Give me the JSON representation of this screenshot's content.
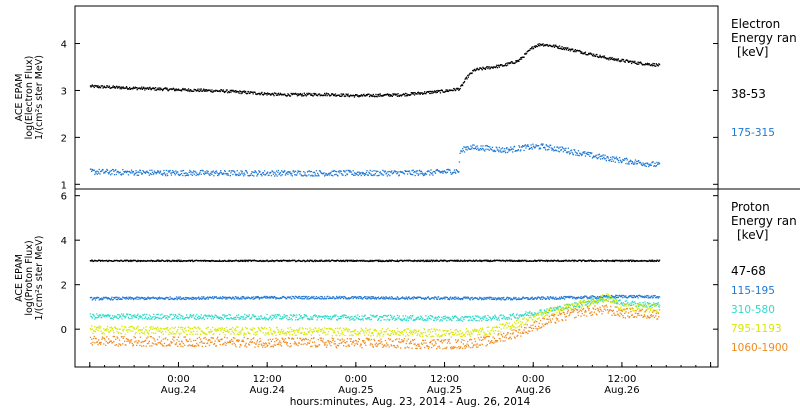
{
  "xlabel": "hours:minutes, Aug. 23, 2014 - Aug. 26, 2014",
  "x_ticks": [
    {
      "time": "0:00",
      "date": "Aug.24",
      "hours": 24
    },
    {
      "time": "12:00",
      "date": "Aug.24",
      "hours": 36
    },
    {
      "time": "0:00",
      "date": "Aug.25",
      "hours": 48
    },
    {
      "time": "12:00",
      "date": "Aug.25",
      "hours": 60
    },
    {
      "time": "0:00",
      "date": "Aug.26",
      "hours": 72
    },
    {
      "time": "12:00",
      "date": "Aug.26",
      "hours": 84
    }
  ],
  "colors": {
    "black": "#000000",
    "blue": "#1f78d4",
    "cyan": "#2fd9c9",
    "yellow": "#d8e800",
    "orange": "#f08a1c"
  },
  "chart_data": [
    {
      "type": "scatter",
      "panel": "electron",
      "ylabel_lines": [
        "ACE EPAM",
        "log(Electron Flux)",
        "1/(cm²s ster MeV)"
      ],
      "ylim": [
        0.9,
        4.8
      ],
      "yticks": [
        1,
        2,
        3,
        4
      ],
      "x_unit": "hours since Aug. 23, 2014 00:00",
      "xlim": [
        10,
        97
      ],
      "legend_title": [
        "Electron",
        "Energy ran",
        "[keV]"
      ],
      "series": [
        {
          "name": "38-53",
          "color": "#000000",
          "noise": 0.03,
          "x": [
            12,
            20,
            30,
            38,
            44,
            48,
            54,
            60,
            62,
            63,
            64,
            66,
            68,
            70,
            72,
            73,
            75,
            78,
            82,
            86,
            89
          ],
          "y": [
            3.1,
            3.05,
            3.0,
            2.92,
            2.93,
            2.9,
            2.92,
            3.0,
            3.05,
            3.3,
            3.45,
            3.5,
            3.55,
            3.65,
            3.95,
            4.0,
            3.95,
            3.85,
            3.7,
            3.6,
            3.55
          ]
        },
        {
          "name": "175-315",
          "color": "#1f78d4",
          "noise": 0.06,
          "x": [
            12,
            20,
            30,
            40,
            50,
            58,
            61.9,
            62,
            63,
            66,
            68,
            71,
            73,
            76,
            80,
            84,
            89
          ],
          "y": [
            1.28,
            1.26,
            1.25,
            1.25,
            1.25,
            1.26,
            1.3,
            1.7,
            1.8,
            1.78,
            1.74,
            1.8,
            1.82,
            1.75,
            1.62,
            1.52,
            1.42
          ]
        }
      ]
    },
    {
      "type": "scatter",
      "panel": "proton",
      "ylabel_lines": [
        "ACE EPAM",
        "log(Proton Flux)",
        "1/(cm²s ster MeV)"
      ],
      "ylim": [
        -1.7,
        6.3
      ],
      "yticks": [
        0,
        2,
        4,
        6
      ],
      "x_unit": "hours since Aug. 23, 2014 00:00",
      "xlim": [
        10,
        97
      ],
      "legend_title": [
        "Proton",
        "Energy ran",
        "[keV]"
      ],
      "series": [
        {
          "name": "47-68",
          "color": "#000000",
          "noise": 0.03,
          "x": [
            12,
            89
          ],
          "y": [
            3.1,
            3.1
          ]
        },
        {
          "name": "115-195",
          "color": "#1f78d4",
          "noise": 0.06,
          "x": [
            12,
            40,
            60,
            70,
            78,
            84,
            89
          ],
          "y": [
            1.4,
            1.45,
            1.42,
            1.4,
            1.45,
            1.5,
            1.48
          ]
        },
        {
          "name": "310-580",
          "color": "#2fd9c9",
          "noise": 0.12,
          "x": [
            12,
            30,
            50,
            62,
            68,
            72,
            76,
            80,
            82,
            84,
            89
          ],
          "y": [
            0.6,
            0.58,
            0.55,
            0.5,
            0.55,
            0.75,
            1.0,
            1.3,
            1.4,
            1.2,
            1.1
          ]
        },
        {
          "name": "795-1193",
          "color": "#d8e800",
          "noise": 0.18,
          "x": [
            12,
            30,
            50,
            62,
            66,
            70,
            74,
            78,
            80,
            82,
            84,
            89
          ],
          "y": [
            0.0,
            -0.05,
            -0.1,
            -0.15,
            -0.05,
            0.3,
            0.8,
            1.1,
            1.3,
            1.45,
            1.0,
            0.95
          ]
        },
        {
          "name": "1060-1900",
          "color": "#f08a1c",
          "noise": 0.22,
          "x": [
            12,
            30,
            50,
            62,
            66,
            70,
            74,
            78,
            80,
            82,
            84,
            89
          ],
          "y": [
            -0.5,
            -0.55,
            -0.6,
            -0.65,
            -0.5,
            -0.1,
            0.4,
            0.8,
            0.85,
            0.9,
            0.75,
            0.7
          ]
        }
      ]
    }
  ]
}
